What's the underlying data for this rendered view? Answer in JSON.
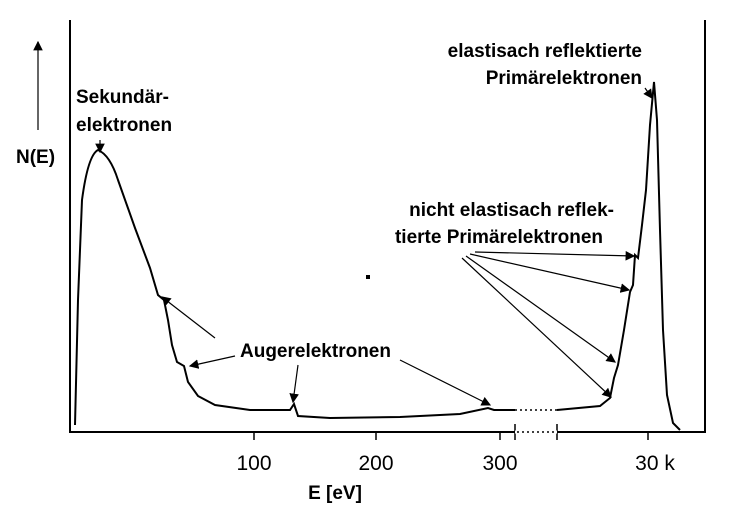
{
  "axes": {
    "y_label": "N(E)",
    "x_label": "E [eV]",
    "x_tick_labels": [
      "100",
      "200",
      "300",
      "30 k"
    ]
  },
  "annotations": {
    "secondary": [
      "Sekundär-",
      "elektronen"
    ],
    "elastic": [
      "elastisach reflektierte",
      "Primärelektronen"
    ],
    "inelastic": [
      "nicht elastisach reflek-",
      "tierte Primärelektronen"
    ],
    "auger": "Augerelektronen"
  }
}
